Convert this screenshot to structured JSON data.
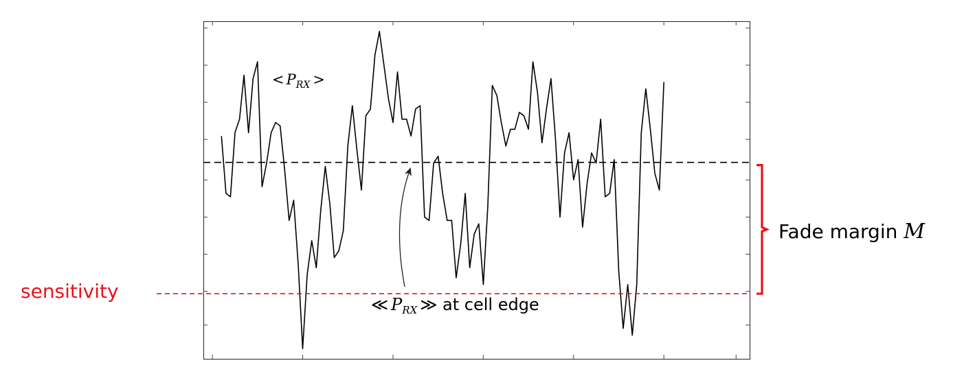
{
  "colors": {
    "signal": "#000000",
    "threshold": "#000000",
    "sensitivity": "#e8141a",
    "bracket": "#e8141a"
  },
  "labels": {
    "mean_power": {
      "lt": "<",
      "p": "P",
      "sub": "RX",
      "gt": ">"
    },
    "cell_edge": {
      "open": "≪",
      "p": "P",
      "sub": "RX",
      "close": "≫",
      "suffix": " at cell edge"
    },
    "fade_margin": {
      "text": "Fade margin ",
      "symbol": "M"
    },
    "sensitivity": "sensitivity"
  },
  "chart_data": {
    "type": "line",
    "title": "",
    "xlabel": "",
    "ylabel": "",
    "xlim": [
      0,
      121
    ],
    "ylim": [
      0,
      100
    ],
    "ticks_x": [
      2,
      22,
      42,
      62,
      82,
      102,
      118
    ],
    "ticks_y": [
      10,
      20,
      31,
      42,
      53,
      65,
      76,
      87,
      98
    ],
    "grid": false,
    "reference_lines": {
      "mean_level": 58.2,
      "sensitivity_level": 19.3
    },
    "series": [
      {
        "values": [
          66,
          49,
          48,
          67,
          71,
          84,
          67,
          83,
          88,
          51,
          58,
          67,
          70,
          69,
          56,
          41,
          47,
          28,
          3,
          25,
          35,
          27,
          44,
          57,
          46,
          30,
          32,
          38,
          63,
          75,
          62,
          50,
          72,
          74,
          90,
          97,
          87,
          77,
          70,
          85,
          71,
          71,
          66,
          74,
          75,
          42,
          41,
          58,
          60,
          49,
          41,
          41,
          24,
          34,
          49,
          27,
          37,
          40,
          22,
          45,
          81,
          78,
          70,
          63,
          68,
          68,
          73,
          72,
          68,
          88,
          79,
          64,
          74,
          83,
          65,
          42,
          61,
          67,
          53,
          59,
          39,
          52,
          61,
          58,
          71,
          48,
          49,
          59,
          26,
          9,
          22,
          7,
          22,
          67,
          80,
          68,
          55,
          50,
          82
        ]
      }
    ]
  }
}
